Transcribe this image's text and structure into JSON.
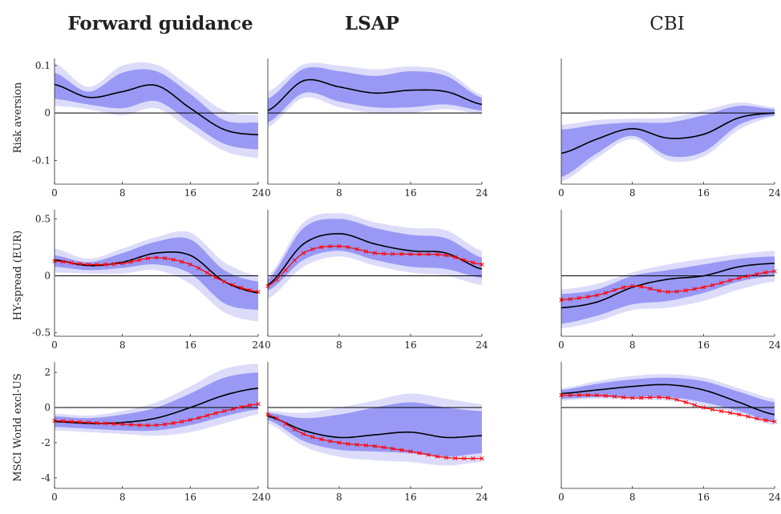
{
  "column_titles": [
    "Forward guidance",
    "LSAP",
    "CBI"
  ],
  "column_title_bold": [
    true,
    true,
    false
  ],
  "row_labels": [
    "Risk aversion",
    "HY-spread (EUR)",
    "MSCI World excl-US"
  ],
  "colors": {
    "median_line": "#000000",
    "band_inner": "#9999f5",
    "band_outer": "#dcdcfa",
    "red_series": "#ff0000",
    "zero_line": "#000000",
    "axes": "#262626"
  },
  "chart_data": [
    {
      "type": "line",
      "panel": "r1c1",
      "column": "Forward guidance",
      "row": "Risk aversion",
      "x": [
        0,
        4,
        8,
        12,
        16,
        20,
        24
      ],
      "xticks": [
        0,
        8,
        16,
        24
      ],
      "ylim": [
        -0.15,
        0.115
      ],
      "yticks": [
        -0.1,
        0,
        0.1
      ],
      "ytick_labels": [
        "-0.1",
        "0",
        "0.1"
      ],
      "median": [
        0.06,
        0.033,
        0.045,
        0.058,
        0.01,
        -0.035,
        -0.046
      ],
      "inner_upper": [
        0.085,
        0.045,
        0.085,
        0.088,
        0.04,
        -0.015,
        -0.02
      ],
      "inner_lower": [
        0.03,
        0.018,
        0.01,
        0.025,
        -0.02,
        -0.065,
        -0.077
      ],
      "outer_upper": [
        0.105,
        0.055,
        0.1,
        0.102,
        0.055,
        0.005,
        -0.005
      ],
      "outer_lower": [
        0.015,
        0.008,
        -0.005,
        0.01,
        -0.035,
        -0.08,
        -0.095
      ]
    },
    {
      "type": "line",
      "panel": "r1c2",
      "column": "LSAP",
      "row": "Risk aversion",
      "x": [
        0,
        4,
        8,
        12,
        16,
        20,
        24
      ],
      "xticks": [
        0,
        8,
        16,
        24
      ],
      "ylim": [
        -0.15,
        0.115
      ],
      "yticks": [],
      "ytick_labels": [],
      "median": [
        0.005,
        0.068,
        0.055,
        0.042,
        0.048,
        0.045,
        0.018
      ],
      "inner_upper": [
        0.03,
        0.093,
        0.088,
        0.078,
        0.088,
        0.078,
        0.032
      ],
      "inner_lower": [
        -0.02,
        0.042,
        0.024,
        0.012,
        0.012,
        0.018,
        0.005
      ],
      "outer_upper": [
        0.045,
        0.102,
        0.1,
        0.092,
        0.098,
        0.088,
        0.038
      ],
      "outer_lower": [
        -0.03,
        0.032,
        0.012,
        0.0,
        0.0,
        0.008,
        -0.002
      ]
    },
    {
      "type": "line",
      "panel": "r1c3",
      "column": "CBI",
      "row": "Risk aversion",
      "x": [
        0,
        4,
        8,
        12,
        16,
        20,
        24
      ],
      "xticks": [
        0,
        8,
        16,
        24
      ],
      "ylim": [
        -0.15,
        0.115
      ],
      "yticks": [],
      "ytick_labels": [],
      "median": [
        -0.085,
        -0.055,
        -0.033,
        -0.053,
        -0.045,
        -0.01,
        0.0
      ],
      "inner_upper": [
        -0.035,
        -0.025,
        -0.02,
        -0.02,
        -0.005,
        0.015,
        0.008
      ],
      "inner_lower": [
        -0.135,
        -0.085,
        -0.048,
        -0.09,
        -0.082,
        -0.025,
        -0.005
      ],
      "outer_upper": [
        -0.025,
        -0.015,
        -0.012,
        -0.01,
        0.005,
        0.022,
        0.012
      ],
      "outer_lower": [
        -0.145,
        -0.095,
        -0.055,
        -0.1,
        -0.092,
        -0.035,
        -0.008
      ]
    },
    {
      "type": "line",
      "panel": "r2c1",
      "column": "Forward guidance",
      "row": "HY-spread (EUR)",
      "x": [
        0,
        4,
        8,
        12,
        16,
        20,
        24
      ],
      "xticks": [
        0,
        8,
        16,
        24
      ],
      "ylim": [
        -0.53,
        0.58
      ],
      "yticks": [
        -0.5,
        0,
        0.5
      ],
      "ytick_labels": [
        "-0.5",
        "0",
        "0.5"
      ],
      "median": [
        0.14,
        0.09,
        0.12,
        0.2,
        0.18,
        -0.05,
        -0.15
      ],
      "inner_upper": [
        0.18,
        0.12,
        0.2,
        0.3,
        0.32,
        0.05,
        -0.05
      ],
      "inner_lower": [
        0.08,
        0.05,
        0.07,
        0.1,
        0.02,
        -0.24,
        -0.3
      ],
      "outer_upper": [
        0.24,
        0.15,
        0.24,
        0.34,
        0.38,
        0.12,
        0.0
      ],
      "outer_lower": [
        0.03,
        0.02,
        0.02,
        0.05,
        -0.07,
        -0.32,
        -0.4
      ],
      "red": [
        0.13,
        0.1,
        0.11,
        0.16,
        0.1,
        -0.05,
        -0.14
      ]
    },
    {
      "type": "line",
      "panel": "r2c2",
      "column": "LSAP",
      "row": "HY-spread (EUR)",
      "x": [
        0,
        4,
        8,
        12,
        16,
        20,
        24
      ],
      "xticks": [
        0,
        8,
        16,
        24
      ],
      "ylim": [
        -0.53,
        0.58
      ],
      "yticks": [],
      "ytick_labels": [],
      "median": [
        -0.08,
        0.28,
        0.37,
        0.28,
        0.22,
        0.2,
        0.06
      ],
      "inner_upper": [
        -0.03,
        0.42,
        0.5,
        0.42,
        0.36,
        0.33,
        0.16
      ],
      "inner_lower": [
        -0.13,
        0.14,
        0.22,
        0.14,
        0.08,
        0.06,
        -0.02
      ],
      "outer_upper": [
        0.0,
        0.47,
        0.55,
        0.47,
        0.42,
        0.4,
        0.22
      ],
      "outer_lower": [
        -0.2,
        0.08,
        0.17,
        0.09,
        0.03,
        0.0,
        -0.08
      ],
      "red": [
        -0.09,
        0.2,
        0.26,
        0.2,
        0.19,
        0.18,
        0.1
      ]
    },
    {
      "type": "line",
      "panel": "r2c3",
      "column": "CBI",
      "row": "HY-spread (EUR)",
      "x": [
        0,
        4,
        8,
        12,
        16,
        20,
        24
      ],
      "xticks": [
        0,
        8,
        16,
        24
      ],
      "ylim": [
        -0.53,
        0.58
      ],
      "yticks": [],
      "ytick_labels": [],
      "median": [
        -0.28,
        -0.23,
        -0.1,
        -0.03,
        0.0,
        0.08,
        0.11
      ],
      "inner_upper": [
        -0.16,
        -0.12,
        0.0,
        0.05,
        0.1,
        0.15,
        0.17
      ],
      "inner_lower": [
        -0.42,
        -0.35,
        -0.25,
        -0.22,
        -0.15,
        -0.05,
        0.0
      ],
      "outer_upper": [
        -0.12,
        -0.07,
        0.03,
        0.1,
        0.15,
        0.19,
        0.22
      ],
      "outer_lower": [
        -0.46,
        -0.4,
        -0.3,
        -0.28,
        -0.22,
        -0.12,
        -0.05
      ],
      "red": [
        -0.21,
        -0.17,
        -0.09,
        -0.14,
        -0.1,
        -0.02,
        0.04
      ]
    },
    {
      "type": "line",
      "panel": "r3c1",
      "column": "Forward guidance",
      "row": "MSCI World excl-US",
      "x": [
        0,
        4,
        8,
        12,
        16,
        20,
        24
      ],
      "xticks": [
        0,
        8,
        16,
        24
      ],
      "ylim": [
        -4.6,
        2.6
      ],
      "yticks": [
        -4,
        -2,
        0,
        2
      ],
      "ytick_labels": [
        "-4",
        "-2",
        "0",
        "2"
      ],
      "median": [
        -0.8,
        -0.9,
        -0.85,
        -0.6,
        0.0,
        0.7,
        1.1
      ],
      "inner_upper": [
        -0.5,
        -0.6,
        -0.4,
        0.0,
        0.8,
        1.7,
        2.0
      ],
      "inner_lower": [
        -1.1,
        -1.2,
        -1.3,
        -1.3,
        -1.0,
        -0.5,
        -0.1
      ],
      "outer_upper": [
        -0.35,
        -0.45,
        -0.2,
        0.3,
        1.2,
        2.2,
        2.5
      ],
      "outer_lower": [
        -1.3,
        -1.4,
        -1.5,
        -1.6,
        -1.4,
        -0.9,
        -0.4
      ],
      "red": [
        -0.75,
        -0.85,
        -0.95,
        -1.0,
        -0.7,
        -0.2,
        0.2
      ]
    },
    {
      "type": "line",
      "panel": "r3c2",
      "column": "LSAP",
      "row": "MSCI World excl-US",
      "x": [
        0,
        4,
        8,
        12,
        16,
        20,
        24
      ],
      "xticks": [
        0,
        8,
        16,
        24
      ],
      "ylim": [
        -4.6,
        2.6
      ],
      "yticks": [],
      "ytick_labels": [],
      "median": [
        -0.5,
        -1.3,
        -1.7,
        -1.55,
        -1.4,
        -1.7,
        -1.6
      ],
      "inner_upper": [
        -0.3,
        -0.6,
        -0.4,
        0.0,
        0.3,
        0.0,
        -0.2
      ],
      "inner_lower": [
        -0.7,
        -1.9,
        -2.4,
        -2.5,
        -2.6,
        -2.8,
        -2.6
      ],
      "outer_upper": [
        -0.2,
        -0.3,
        0.0,
        0.4,
        0.8,
        0.5,
        0.2
      ],
      "outer_lower": [
        -0.9,
        -2.2,
        -2.8,
        -3.0,
        -3.1,
        -3.3,
        -3.1
      ],
      "red": [
        -0.4,
        -1.5,
        -2.0,
        -2.2,
        -2.5,
        -2.85,
        -2.9
      ]
    },
    {
      "type": "line",
      "panel": "r3c3",
      "column": "CBI",
      "row": "MSCI World excl-US",
      "x": [
        0,
        4,
        8,
        12,
        16,
        20,
        24
      ],
      "xticks": [
        0,
        8,
        16,
        24
      ],
      "ylim": [
        -4.6,
        2.6
      ],
      "yticks": [],
      "ytick_labels": [],
      "median": [
        0.8,
        1.0,
        1.2,
        1.3,
        1.0,
        0.3,
        -0.4
      ],
      "inner_upper": [
        1.0,
        1.35,
        1.6,
        1.7,
        1.5,
        0.9,
        0.3
      ],
      "inner_lower": [
        0.5,
        0.6,
        0.6,
        0.6,
        0.3,
        -0.2,
        -0.8
      ],
      "outer_upper": [
        1.1,
        1.5,
        1.8,
        1.9,
        1.7,
        1.1,
        0.5
      ],
      "outer_lower": [
        0.4,
        0.5,
        0.45,
        0.4,
        0.1,
        -0.4,
        -1.0
      ],
      "red": [
        0.7,
        0.7,
        0.55,
        0.55,
        0.0,
        -0.4,
        -0.8
      ]
    }
  ]
}
